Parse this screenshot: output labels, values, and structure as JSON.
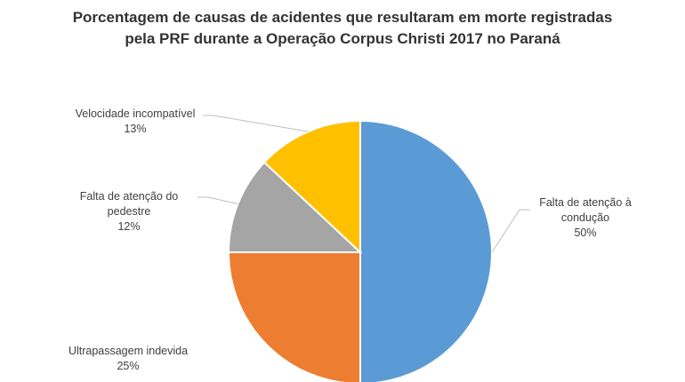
{
  "chart_data": {
    "type": "pie",
    "title_lines": [
      "Porcentagem de causas de acidentes que resultaram em morte registradas",
      "pela PRF durante a Operação Corpus Christi 2017 no Paraná"
    ],
    "slices": [
      {
        "label": "Falta de atenção à condução",
        "value": 50,
        "value_label": "50%",
        "color": "#5B9BD5"
      },
      {
        "label": "Ultrapassagem indevida",
        "value": 25,
        "value_label": "25%",
        "color": "#ED7D31"
      },
      {
        "label": "Falta de atenção do pedestre",
        "value": 12,
        "value_label": "12%",
        "color": "#A5A5A5"
      },
      {
        "label": "Velocidade incompatível",
        "value": 13,
        "value_label": "13%",
        "color": "#FFC000"
      }
    ],
    "start_angle": "12 o'clock",
    "direction": "clockwise",
    "legend": "none",
    "slice_border_color": "#ffffff",
    "leader_line_color": "#bfbfbf"
  }
}
